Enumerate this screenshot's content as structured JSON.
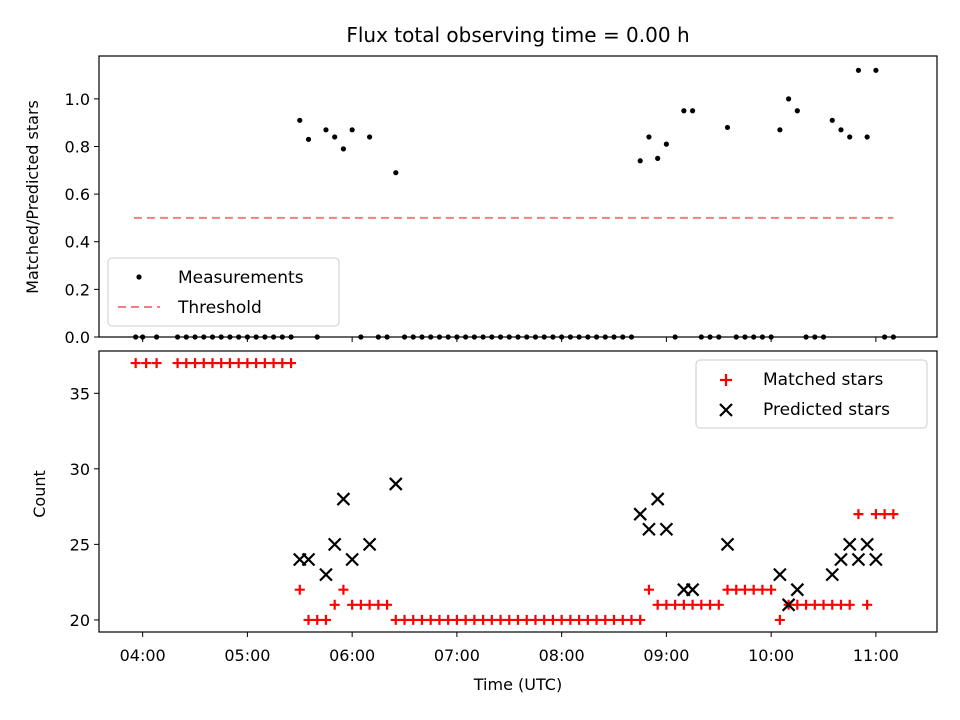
{
  "title": "Flux total observing time = 0.00 h",
  "chart_data": [
    {
      "type": "scatter",
      "ylabel": "Matched/Predicted stars",
      "xlabel": "",
      "x_axis": {
        "range": [
          "03:35",
          "11:35"
        ],
        "ticks": [
          "04:00",
          "05:00",
          "06:00",
          "07:00",
          "08:00",
          "09:00",
          "10:00",
          "11:00"
        ]
      },
      "ylim": [
        0,
        1.18
      ],
      "yticks": [
        "0.0",
        "0.2",
        "0.4",
        "0.6",
        "0.8",
        "1.0"
      ],
      "grid": false,
      "legend": "lower-left",
      "series": [
        {
          "name": "Measurements",
          "style": "dot",
          "color": "#000000",
          "points": [
            [
              "03:56",
              0
            ],
            [
              "04:00",
              0
            ],
            [
              "04:08",
              0
            ],
            [
              "04:20",
              0
            ],
            [
              "04:25",
              0
            ],
            [
              "04:30",
              0
            ],
            [
              "04:35",
              0
            ],
            [
              "04:40",
              0
            ],
            [
              "04:45",
              0
            ],
            [
              "04:50",
              0
            ],
            [
              "04:55",
              0
            ],
            [
              "05:00",
              0
            ],
            [
              "05:05",
              0
            ],
            [
              "05:10",
              0
            ],
            [
              "05:15",
              0
            ],
            [
              "05:20",
              0
            ],
            [
              "05:25",
              0
            ],
            [
              "05:30",
              0.91
            ],
            [
              "05:35",
              0.83
            ],
            [
              "05:40",
              0
            ],
            [
              "05:45",
              0.87
            ],
            [
              "05:50",
              0.84
            ],
            [
              "05:55",
              0.79
            ],
            [
              "06:00",
              0.87
            ],
            [
              "06:05",
              0
            ],
            [
              "06:10",
              0.84
            ],
            [
              "06:15",
              0
            ],
            [
              "06:20",
              0
            ],
            [
              "06:25",
              0.69
            ],
            [
              "06:30",
              0
            ],
            [
              "06:35",
              0
            ],
            [
              "06:40",
              0
            ],
            [
              "06:45",
              0
            ],
            [
              "06:50",
              0
            ],
            [
              "06:55",
              0
            ],
            [
              "07:00",
              0
            ],
            [
              "07:05",
              0
            ],
            [
              "07:10",
              0
            ],
            [
              "07:15",
              0
            ],
            [
              "07:20",
              0
            ],
            [
              "07:25",
              0
            ],
            [
              "07:30",
              0
            ],
            [
              "07:35",
              0
            ],
            [
              "07:40",
              0
            ],
            [
              "07:45",
              0
            ],
            [
              "07:50",
              0
            ],
            [
              "07:55",
              0
            ],
            [
              "08:00",
              0
            ],
            [
              "08:05",
              0
            ],
            [
              "08:10",
              0
            ],
            [
              "08:15",
              0
            ],
            [
              "08:20",
              0
            ],
            [
              "08:25",
              0
            ],
            [
              "08:30",
              0
            ],
            [
              "08:35",
              0
            ],
            [
              "08:40",
              0
            ],
            [
              "08:45",
              0.74
            ],
            [
              "08:50",
              0.84
            ],
            [
              "08:55",
              0.75
            ],
            [
              "09:00",
              0.81
            ],
            [
              "09:05",
              0
            ],
            [
              "09:10",
              0.95
            ],
            [
              "09:15",
              0.95
            ],
            [
              "09:20",
              0
            ],
            [
              "09:25",
              0
            ],
            [
              "09:30",
              0
            ],
            [
              "09:35",
              0.88
            ],
            [
              "09:40",
              0
            ],
            [
              "09:45",
              0
            ],
            [
              "09:50",
              0
            ],
            [
              "09:55",
              0
            ],
            [
              "10:00",
              0
            ],
            [
              "10:05",
              0.87
            ],
            [
              "10:10",
              1.0
            ],
            [
              "10:15",
              0.95
            ],
            [
              "10:20",
              0
            ],
            [
              "10:25",
              0
            ],
            [
              "10:30",
              0
            ],
            [
              "10:35",
              0.91
            ],
            [
              "10:40",
              0.87
            ],
            [
              "10:45",
              0.84
            ],
            [
              "10:50",
              1.12
            ],
            [
              "10:55",
              0.84
            ],
            [
              "11:00",
              1.12
            ],
            [
              "11:05",
              0
            ],
            [
              "11:10",
              0
            ]
          ]
        },
        {
          "name": "Threshold",
          "style": "dashed-line",
          "color": "#f08080",
          "points": [
            [
              "03:55",
              0.5
            ],
            [
              "11:10",
              0.5
            ]
          ]
        }
      ]
    },
    {
      "type": "scatter",
      "ylabel": "Count",
      "xlabel": "Time (UTC)",
      "x_axis": {
        "range": [
          "03:35",
          "11:35"
        ],
        "ticks": [
          "04:00",
          "05:00",
          "06:00",
          "07:00",
          "08:00",
          "09:00",
          "10:00",
          "11:00"
        ]
      },
      "ylim": [
        19.2,
        37.8
      ],
      "yticks": [
        "20",
        "25",
        "30",
        "35"
      ],
      "grid": false,
      "legend": "upper-right",
      "series": [
        {
          "name": "Matched stars",
          "style": "plus",
          "color": "#ff0000",
          "points": [
            [
              "03:56",
              37
            ],
            [
              "04:02",
              37
            ],
            [
              "04:08",
              37
            ],
            [
              "04:20",
              37
            ],
            [
              "04:25",
              37
            ],
            [
              "04:30",
              37
            ],
            [
              "04:35",
              37
            ],
            [
              "04:40",
              37
            ],
            [
              "04:45",
              37
            ],
            [
              "04:50",
              37
            ],
            [
              "04:55",
              37
            ],
            [
              "05:00",
              37
            ],
            [
              "05:05",
              37
            ],
            [
              "05:10",
              37
            ],
            [
              "05:15",
              37
            ],
            [
              "05:20",
              37
            ],
            [
              "05:25",
              37
            ],
            [
              "05:30",
              22
            ],
            [
              "05:35",
              20
            ],
            [
              "05:40",
              20
            ],
            [
              "05:45",
              20
            ],
            [
              "05:50",
              21
            ],
            [
              "05:55",
              22
            ],
            [
              "06:00",
              21
            ],
            [
              "06:05",
              21
            ],
            [
              "06:10",
              21
            ],
            [
              "06:15",
              21
            ],
            [
              "06:20",
              21
            ],
            [
              "06:25",
              20
            ],
            [
              "06:30",
              20
            ],
            [
              "06:35",
              20
            ],
            [
              "06:40",
              20
            ],
            [
              "06:45",
              20
            ],
            [
              "06:50",
              20
            ],
            [
              "06:55",
              20
            ],
            [
              "07:00",
              20
            ],
            [
              "07:05",
              20
            ],
            [
              "07:10",
              20
            ],
            [
              "07:15",
              20
            ],
            [
              "07:20",
              20
            ],
            [
              "07:25",
              20
            ],
            [
              "07:30",
              20
            ],
            [
              "07:35",
              20
            ],
            [
              "07:40",
              20
            ],
            [
              "07:45",
              20
            ],
            [
              "07:50",
              20
            ],
            [
              "07:55",
              20
            ],
            [
              "08:00",
              20
            ],
            [
              "08:05",
              20
            ],
            [
              "08:10",
              20
            ],
            [
              "08:15",
              20
            ],
            [
              "08:20",
              20
            ],
            [
              "08:25",
              20
            ],
            [
              "08:30",
              20
            ],
            [
              "08:35",
              20
            ],
            [
              "08:40",
              20
            ],
            [
              "08:45",
              20
            ],
            [
              "08:50",
              22
            ],
            [
              "08:55",
              21
            ],
            [
              "09:00",
              21
            ],
            [
              "09:05",
              21
            ],
            [
              "09:10",
              21
            ],
            [
              "09:15",
              21
            ],
            [
              "09:20",
              21
            ],
            [
              "09:25",
              21
            ],
            [
              "09:30",
              21
            ],
            [
              "09:35",
              22
            ],
            [
              "09:40",
              22
            ],
            [
              "09:45",
              22
            ],
            [
              "09:50",
              22
            ],
            [
              "09:55",
              22
            ],
            [
              "10:00",
              22
            ],
            [
              "10:05",
              20
            ],
            [
              "10:10",
              21
            ],
            [
              "10:15",
              21
            ],
            [
              "10:20",
              21
            ],
            [
              "10:25",
              21
            ],
            [
              "10:30",
              21
            ],
            [
              "10:35",
              21
            ],
            [
              "10:40",
              21
            ],
            [
              "10:45",
              21
            ],
            [
              "10:50",
              27
            ],
            [
              "10:55",
              21
            ],
            [
              "11:00",
              27
            ],
            [
              "11:05",
              27
            ],
            [
              "11:10",
              27
            ]
          ]
        },
        {
          "name": "Predicted stars",
          "style": "x",
          "color": "#000000",
          "points": [
            [
              "05:30",
              24
            ],
            [
              "05:35",
              24
            ],
            [
              "05:45",
              23
            ],
            [
              "05:50",
              25
            ],
            [
              "05:55",
              28
            ],
            [
              "06:00",
              24
            ],
            [
              "06:10",
              25
            ],
            [
              "06:25",
              29
            ],
            [
              "08:45",
              27
            ],
            [
              "08:50",
              26
            ],
            [
              "08:55",
              28
            ],
            [
              "09:00",
              26
            ],
            [
              "09:10",
              22
            ],
            [
              "09:15",
              22
            ],
            [
              "09:35",
              25
            ],
            [
              "10:05",
              23
            ],
            [
              "10:10",
              21
            ],
            [
              "10:15",
              22
            ],
            [
              "10:35",
              23
            ],
            [
              "10:40",
              24
            ],
            [
              "10:45",
              25
            ],
            [
              "10:50",
              24
            ],
            [
              "10:55",
              25
            ],
            [
              "11:00",
              24
            ]
          ]
        }
      ]
    }
  ]
}
